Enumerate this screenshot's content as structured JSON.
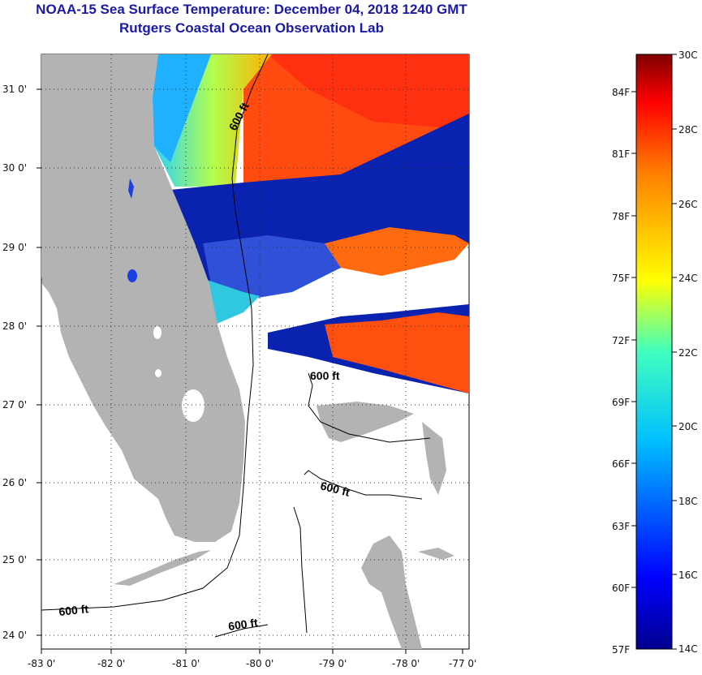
{
  "title": {
    "line1": "NOAA-15 Sea Surface Temperature:  December 04, 2018 1240 GMT",
    "line2": "Rutgers Coastal Ocean Observation Lab"
  },
  "axes": {
    "lat_labels": [
      "31 0'",
      "30 0'",
      "29 0'",
      "28 0'",
      "27 0'",
      "26 0'",
      "25 0'",
      "24 0'"
    ],
    "lon_labels": [
      "-83 0'",
      "-82 0'",
      "-81 0'",
      "-80 0'",
      "-79 0'",
      "-78 0'",
      "-77 0'"
    ]
  },
  "contours": {
    "label_a": "600 ft",
    "label_b": "600 ft",
    "label_c": "600 ft",
    "label_d": "600 ft",
    "label_e": "600 ft"
  },
  "colorbar": {
    "celsius_labels": [
      "30C",
      "28C",
      "26C",
      "24C",
      "22C",
      "20C",
      "18C",
      "16C",
      "14C"
    ],
    "fahrenheit_labels": [
      "84F",
      "81F",
      "78F",
      "75F",
      "72F",
      "69F",
      "66F",
      "63F",
      "60F",
      "57F"
    ]
  },
  "colors": {
    "land": "#b3b3b3",
    "title": "#1a1aa6",
    "warm_water": "#ff4a10",
    "cold_water": "#0a22b0"
  }
}
